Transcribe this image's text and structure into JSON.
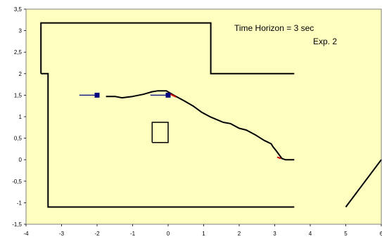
{
  "chart_data": {
    "type": "line",
    "title": "",
    "xlabel": "",
    "ylabel": "",
    "xlim": [
      -4,
      6
    ],
    "ylim": [
      -1.5,
      3.5
    ],
    "xticks": [
      "-4",
      "-3",
      "-2",
      "-1",
      "0",
      "1",
      "2",
      "3",
      "4",
      "5",
      "6"
    ],
    "yticks": [
      "-1,5",
      "-1",
      "-0,5",
      "0",
      "0,5",
      "1",
      "1,5",
      "2",
      "2,5",
      "3",
      "3,5"
    ],
    "grid": false,
    "annotations": [
      "Time Horizon = 3 sec",
      "Exp. 2"
    ],
    "colors": {
      "plot_bg": "#ffffc0",
      "walls": "#000000",
      "path": "#000000",
      "robot": "#000080",
      "horizon_marks": "#d00000"
    },
    "walls": [
      [
        [
          -3.58,
          2.0
        ],
        [
          -3.58,
          3.18
        ],
        [
          1.2,
          3.18
        ],
        [
          1.2,
          2.0
        ],
        [
          3.55,
          2.0
        ]
      ],
      [
        [
          -3.58,
          2.0
        ],
        [
          -3.38,
          2.0
        ],
        [
          -3.38,
          -1.1
        ],
        [
          3.55,
          -1.1
        ]
      ],
      [
        [
          5.0,
          -1.1
        ],
        [
          6.0,
          0.0
        ]
      ]
    ],
    "obstacle": [
      [
        -0.45,
        0.4
      ],
      [
        0.0,
        0.4
      ],
      [
        0.0,
        0.87
      ],
      [
        -0.45,
        0.87
      ],
      [
        -0.45,
        0.4
      ]
    ],
    "robot_trajectory": [
      [
        -1.75,
        1.47
      ],
      [
        -1.5,
        1.47
      ],
      [
        -1.3,
        1.44
      ],
      [
        -1.0,
        1.47
      ],
      [
        -0.7,
        1.52
      ],
      [
        -0.45,
        1.58
      ],
      [
        -0.3,
        1.6
      ],
      [
        -0.05,
        1.6
      ],
      [
        0.2,
        1.48
      ],
      [
        0.45,
        1.37
      ],
      [
        0.7,
        1.25
      ],
      [
        0.95,
        1.1
      ],
      [
        1.2,
        0.99
      ],
      [
        1.55,
        0.87
      ],
      [
        1.75,
        0.84
      ],
      [
        2.0,
        0.73
      ],
      [
        2.2,
        0.69
      ],
      [
        2.45,
        0.58
      ],
      [
        2.7,
        0.45
      ],
      [
        2.9,
        0.37
      ],
      [
        2.95,
        0.3
      ],
      [
        3.05,
        0.2
      ],
      [
        3.2,
        0.03
      ],
      [
        3.3,
        0.0
      ],
      [
        3.55,
        0.0
      ]
    ],
    "robot_positions": [
      {
        "x": -2.0,
        "y": 1.5,
        "heading_from_x": -2.5
      },
      {
        "x": 0.0,
        "y": 1.5,
        "heading_from_x": -0.5
      }
    ],
    "horizon_marks": [
      [
        [
          0.0,
          1.55
        ],
        [
          0.22,
          1.46
        ]
      ],
      [
        [
          3.07,
          0.06
        ],
        [
          3.17,
          0.03
        ]
      ]
    ]
  }
}
